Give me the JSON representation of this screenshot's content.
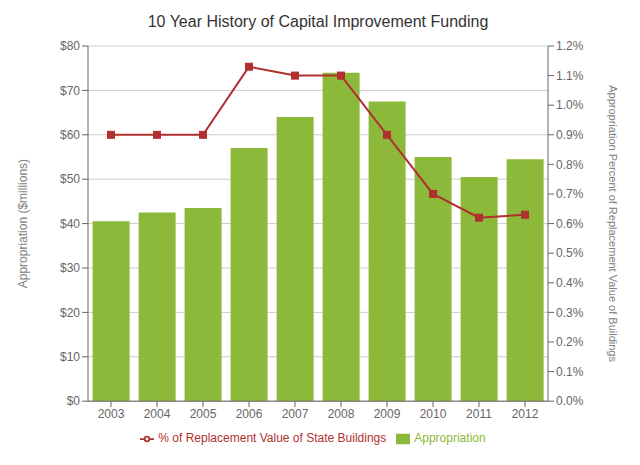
{
  "chart_data": {
    "type": "bar",
    "title": "10 Year History of Capital Improvement Funding",
    "categories": [
      "2003",
      "2004",
      "2005",
      "2006",
      "2007",
      "2008",
      "2009",
      "2010",
      "2011",
      "2012"
    ],
    "series": [
      {
        "name": "Appropriation",
        "type": "bar",
        "color": "#8db93a",
        "values": [
          40.5,
          42.5,
          43.5,
          57.0,
          64.0,
          74.0,
          67.5,
          55.0,
          50.5,
          54.5
        ]
      },
      {
        "name": "% of Replacement Value of State Buildings",
        "type": "line",
        "color": "#b03030",
        "marker": "square",
        "axis": "y2",
        "values": [
          0.9,
          0.9,
          0.9,
          1.13,
          1.1,
          1.1,
          0.9,
          0.7,
          0.62,
          0.63
        ]
      }
    ],
    "ylabel": "Appropriation ($millions)",
    "y2label": "Appropriation Percent of Replacement Value of Buildings",
    "ylim": [
      0,
      80
    ],
    "yticks": [
      {
        "value": 0,
        "label": "$0"
      },
      {
        "value": 10,
        "label": "$10"
      },
      {
        "value": 20,
        "label": "$20"
      },
      {
        "value": 30,
        "label": "$30"
      },
      {
        "value": 40,
        "label": "$40"
      },
      {
        "value": 50,
        "label": "$50"
      },
      {
        "value": 60,
        "label": "$60"
      },
      {
        "value": 70,
        "label": "$70"
      },
      {
        "value": 80,
        "label": "$80"
      }
    ],
    "y2lim": [
      0.0,
      1.2
    ],
    "y2ticks": [
      {
        "value": 0.0,
        "label": "0.0%"
      },
      {
        "value": 0.1,
        "label": "0.1%"
      },
      {
        "value": 0.2,
        "label": "0.2%"
      },
      {
        "value": 0.3,
        "label": "0.3%"
      },
      {
        "value": 0.4,
        "label": "0.4%"
      },
      {
        "value": 0.5,
        "label": "0.5%"
      },
      {
        "value": 0.6,
        "label": "0.6%"
      },
      {
        "value": 0.7,
        "label": "0.7%"
      },
      {
        "value": 0.8,
        "label": "0.8%"
      },
      {
        "value": 0.9,
        "label": "0.9%"
      },
      {
        "value": 1.0,
        "label": "1.0%"
      },
      {
        "value": 1.1,
        "label": "1.1%"
      },
      {
        "value": 1.2,
        "label": "1.2%"
      }
    ],
    "grid": true,
    "legend": "bottom"
  }
}
